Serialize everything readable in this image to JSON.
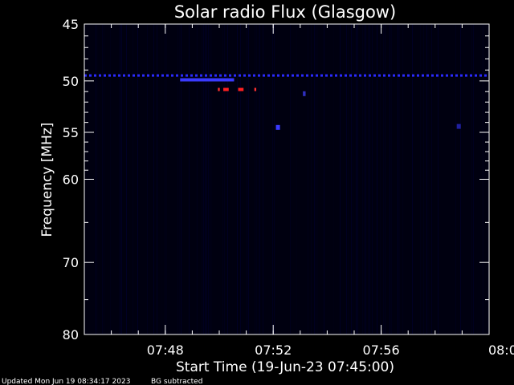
{
  "chart_data": {
    "type": "heatmap",
    "title": "Solar radio Flux (Glasgow)",
    "xlabel": "Start Time (19-Jun-23 07:45:00)",
    "ylabel": "Frequency [MHz]",
    "footer_left": "Updated Mon Jun 19 08:34:17 2023",
    "footer_right": "BG subtracted",
    "xlim_minutes": [
      0,
      15
    ],
    "ylim_mhz": [
      45,
      80
    ],
    "y_scale": "log",
    "x_ticks": [
      {
        "minute": 3,
        "label": "07:48"
      },
      {
        "minute": 7,
        "label": "07:52"
      },
      {
        "minute": 11,
        "label": "07:56"
      },
      {
        "minute": 15,
        "label": "08:00"
      }
    ],
    "x_minor_step_minutes": 1,
    "y_ticks": [
      45,
      50,
      55,
      60,
      70,
      80
    ],
    "y_minor_ticks": [
      46,
      47,
      48,
      49,
      51,
      52,
      53,
      54,
      56,
      57,
      58,
      59,
      65,
      75
    ],
    "background_color": "#000010",
    "features": [
      {
        "type": "band",
        "start_minute": 0,
        "end_minute": 15,
        "mhz": 49.5,
        "color": "#2a2aff",
        "dashed": true
      },
      {
        "type": "band",
        "start_minute": 3.55,
        "end_minute": 5.55,
        "mhz": 49.9,
        "color": "#3a3aff",
        "dashed": false
      },
      {
        "type": "burst",
        "start_minute": 5.15,
        "end_minute": 5.35,
        "mhz": 50.8,
        "color": "#ff2020"
      },
      {
        "type": "burst",
        "start_minute": 5.7,
        "end_minute": 5.9,
        "mhz": 50.8,
        "color": "#ff2020"
      },
      {
        "type": "burst",
        "start_minute": 4.95,
        "end_minute": 5.02,
        "mhz": 50.8,
        "color": "#ff3030"
      },
      {
        "type": "burst",
        "start_minute": 6.3,
        "end_minute": 6.37,
        "mhz": 50.8,
        "color": "#ff3030"
      },
      {
        "type": "spot",
        "start_minute": 7.1,
        "end_minute": 7.25,
        "mhz": 54.5,
        "color": "#3a3aff"
      },
      {
        "type": "spot",
        "start_minute": 8.1,
        "end_minute": 8.2,
        "mhz": 51.2,
        "color": "#3030c0"
      },
      {
        "type": "spot",
        "start_minute": 13.8,
        "end_minute": 13.95,
        "mhz": 54.4,
        "color": "#2020a0"
      }
    ]
  }
}
